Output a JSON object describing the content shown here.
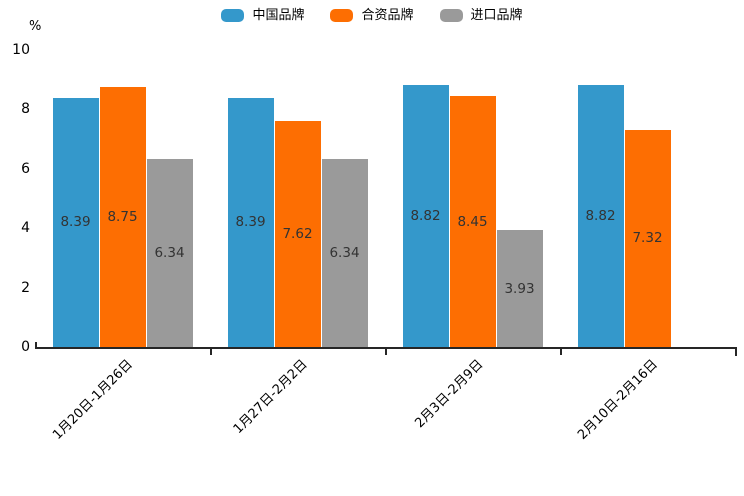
{
  "chart_data": {
    "type": "bar",
    "title": "",
    "unit_label": "%",
    "categories": [
      "1月20日-1月26日",
      "1月27日-2月2日",
      "2月3日-2月9日",
      "2月10日-2月16日"
    ],
    "series": [
      {
        "name": "中国品牌",
        "slug": "china-brand",
        "color": "#3498cb",
        "values": [
          8.39,
          8.39,
          8.82,
          8.82
        ]
      },
      {
        "name": "合资品牌",
        "slug": "joint-venture-brand",
        "color": "#fd6e02",
        "values": [
          8.75,
          7.62,
          8.45,
          7.32
        ]
      },
      {
        "name": "进口品牌",
        "slug": "import-brand",
        "color": "#9a9a9a",
        "values": [
          6.34,
          6.34,
          3.93,
          null
        ]
      }
    ],
    "xlabel": "",
    "ylabel": "",
    "ylim": [
      0,
      10
    ],
    "yticks": [
      0,
      2,
      4,
      6,
      8,
      10
    ],
    "x_tick_label_rotation_deg": 45,
    "legend_position": "top-center",
    "grid": false,
    "value_labels_shown": true,
    "value_label_color": "#333333",
    "axis_color": "#262626",
    "text_color": "#000000",
    "background_color": "#ffffff"
  }
}
